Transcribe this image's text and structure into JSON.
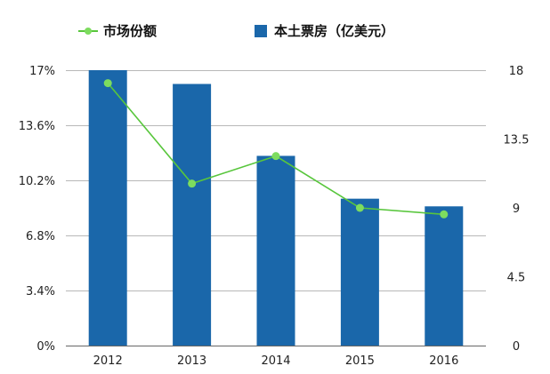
{
  "chart_data": {
    "type": "bar+line",
    "categories": [
      "2012",
      "2013",
      "2014",
      "2015",
      "2016"
    ],
    "series": [
      {
        "name": "本土票房（亿美元）",
        "kind": "bar",
        "axis": "right",
        "color": "#1a67aa",
        "values": [
          18.0,
          17.1,
          12.4,
          9.6,
          9.1
        ]
      },
      {
        "name": "市场份额",
        "kind": "line",
        "axis": "left",
        "color": "#58c63c",
        "marker_color": "#7ddc5f",
        "values": [
          16.2,
          10.0,
          11.7,
          8.5,
          8.1
        ]
      }
    ],
    "left_axis": {
      "ticks": [
        0,
        3.4,
        6.8,
        10.2,
        13.6,
        17
      ],
      "tick_labels": [
        "0%",
        "3.4%",
        "6.8%",
        "10.2%",
        "13.6%",
        "17%"
      ],
      "ylim": [
        0,
        17
      ]
    },
    "right_axis": {
      "ticks": [
        0,
        4.5,
        9,
        13.5,
        18
      ],
      "tick_labels": [
        "0",
        "4.5",
        "9",
        "13.5",
        "18"
      ],
      "ylim": [
        0,
        18
      ]
    },
    "grid": true,
    "legend_placement": "top"
  }
}
